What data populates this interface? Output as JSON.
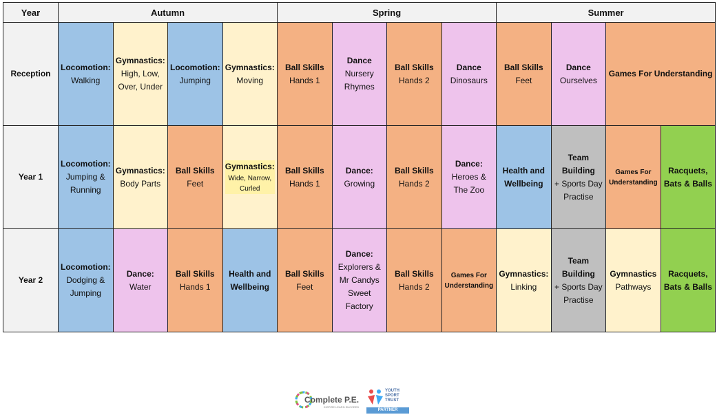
{
  "header": {
    "year_label": "Year",
    "terms": [
      "Autumn",
      "Spring",
      "Summer"
    ]
  },
  "rows": [
    {
      "label": "Reception",
      "cells": [
        {
          "title": "Locomotion:",
          "sub": "Walking",
          "color": "blue"
        },
        {
          "title": "Gymnastics:",
          "sub": "High, Low, Over, Under",
          "color": "cream"
        },
        {
          "title": "Locomotion:",
          "sub": "Jumping",
          "color": "blue"
        },
        {
          "title": "Gymnastics:",
          "sub": "Moving",
          "color": "cream"
        },
        {
          "title": "Ball Skills",
          "sub": "Hands 1",
          "color": "orange"
        },
        {
          "title": "Dance",
          "sub": "Nursery Rhymes",
          "color": "pink"
        },
        {
          "title": "Ball Skills",
          "sub": "Hands 2",
          "color": "orange"
        },
        {
          "title": "Dance",
          "sub": "Dinosaurs",
          "color": "pink"
        },
        {
          "title": "Ball Skills",
          "sub": "Feet",
          "color": "orange"
        },
        {
          "title": "Dance",
          "sub": "Ourselves",
          "color": "pink"
        },
        {
          "title": "Games For Understanding",
          "sub": "",
          "color": "orange",
          "span": 2
        }
      ]
    },
    {
      "label": "Year 1",
      "cells": [
        {
          "title": "Locomotion:",
          "sub": "Jumping & Running",
          "color": "blue"
        },
        {
          "title": "Gymnastics:",
          "sub": "Body Parts",
          "color": "cream"
        },
        {
          "title": "Ball Skills",
          "sub": "Feet",
          "color": "orange"
        },
        {
          "title": "Gymnastics:",
          "sub": "Wide, Narrow, Curled",
          "color": "cream",
          "small": true
        },
        {
          "title": "Ball Skills",
          "sub": "Hands 1",
          "color": "orange"
        },
        {
          "title": "Dance:",
          "sub": "Growing",
          "color": "pink"
        },
        {
          "title": "Ball Skills",
          "sub": "Hands 2",
          "color": "orange"
        },
        {
          "title": "Dance:",
          "sub": "Heroes & The Zoo",
          "color": "pink"
        },
        {
          "title": "Health and Wellbeing",
          "sub": "",
          "color": "blue"
        },
        {
          "title": "Team Building",
          "sub": "+ Sports Day Practise",
          "color": "grey"
        },
        {
          "title": "Games For Understanding",
          "sub": "",
          "color": "orange",
          "tiny": true
        },
        {
          "title": "Racquets, Bats & Balls",
          "sub": "",
          "color": "green"
        }
      ]
    },
    {
      "label": "Year 2",
      "cells": [
        {
          "title": "Locomotion:",
          "sub": "Dodging & Jumping",
          "color": "blue"
        },
        {
          "title": "Dance:",
          "sub": "Water",
          "color": "pink"
        },
        {
          "title": "Ball Skills",
          "sub": "Hands 1",
          "color": "orange"
        },
        {
          "title": "Health and Wellbeing",
          "sub": "",
          "color": "blue"
        },
        {
          "title": "Ball Skills",
          "sub": "Feet",
          "color": "orange"
        },
        {
          "title": "Dance:",
          "sub": "Explorers & Mr Candys Sweet Factory",
          "color": "pink"
        },
        {
          "title": "Ball Skills",
          "sub": "Hands 2",
          "color": "orange"
        },
        {
          "title": "Games For Understanding",
          "sub": "",
          "color": "orange",
          "tiny": true
        },
        {
          "title": "Gymnastics:",
          "sub": "Linking",
          "color": "cream"
        },
        {
          "title": "Team Building",
          "sub": "+ Sports Day Practise",
          "color": "grey"
        },
        {
          "title": "Gymnastics",
          "sub": "Pathways",
          "color": "cream"
        },
        {
          "title": "Racquets, Bats & Balls",
          "sub": "",
          "color": "green"
        }
      ]
    }
  ],
  "footer": {
    "cpe_name": "Complete P.E.",
    "cpe_tagline": "INSPIRE LEARN SUCCEED",
    "yst_name": "YOUTH SPORT TRUST",
    "yst_badge": "PARTNER"
  }
}
